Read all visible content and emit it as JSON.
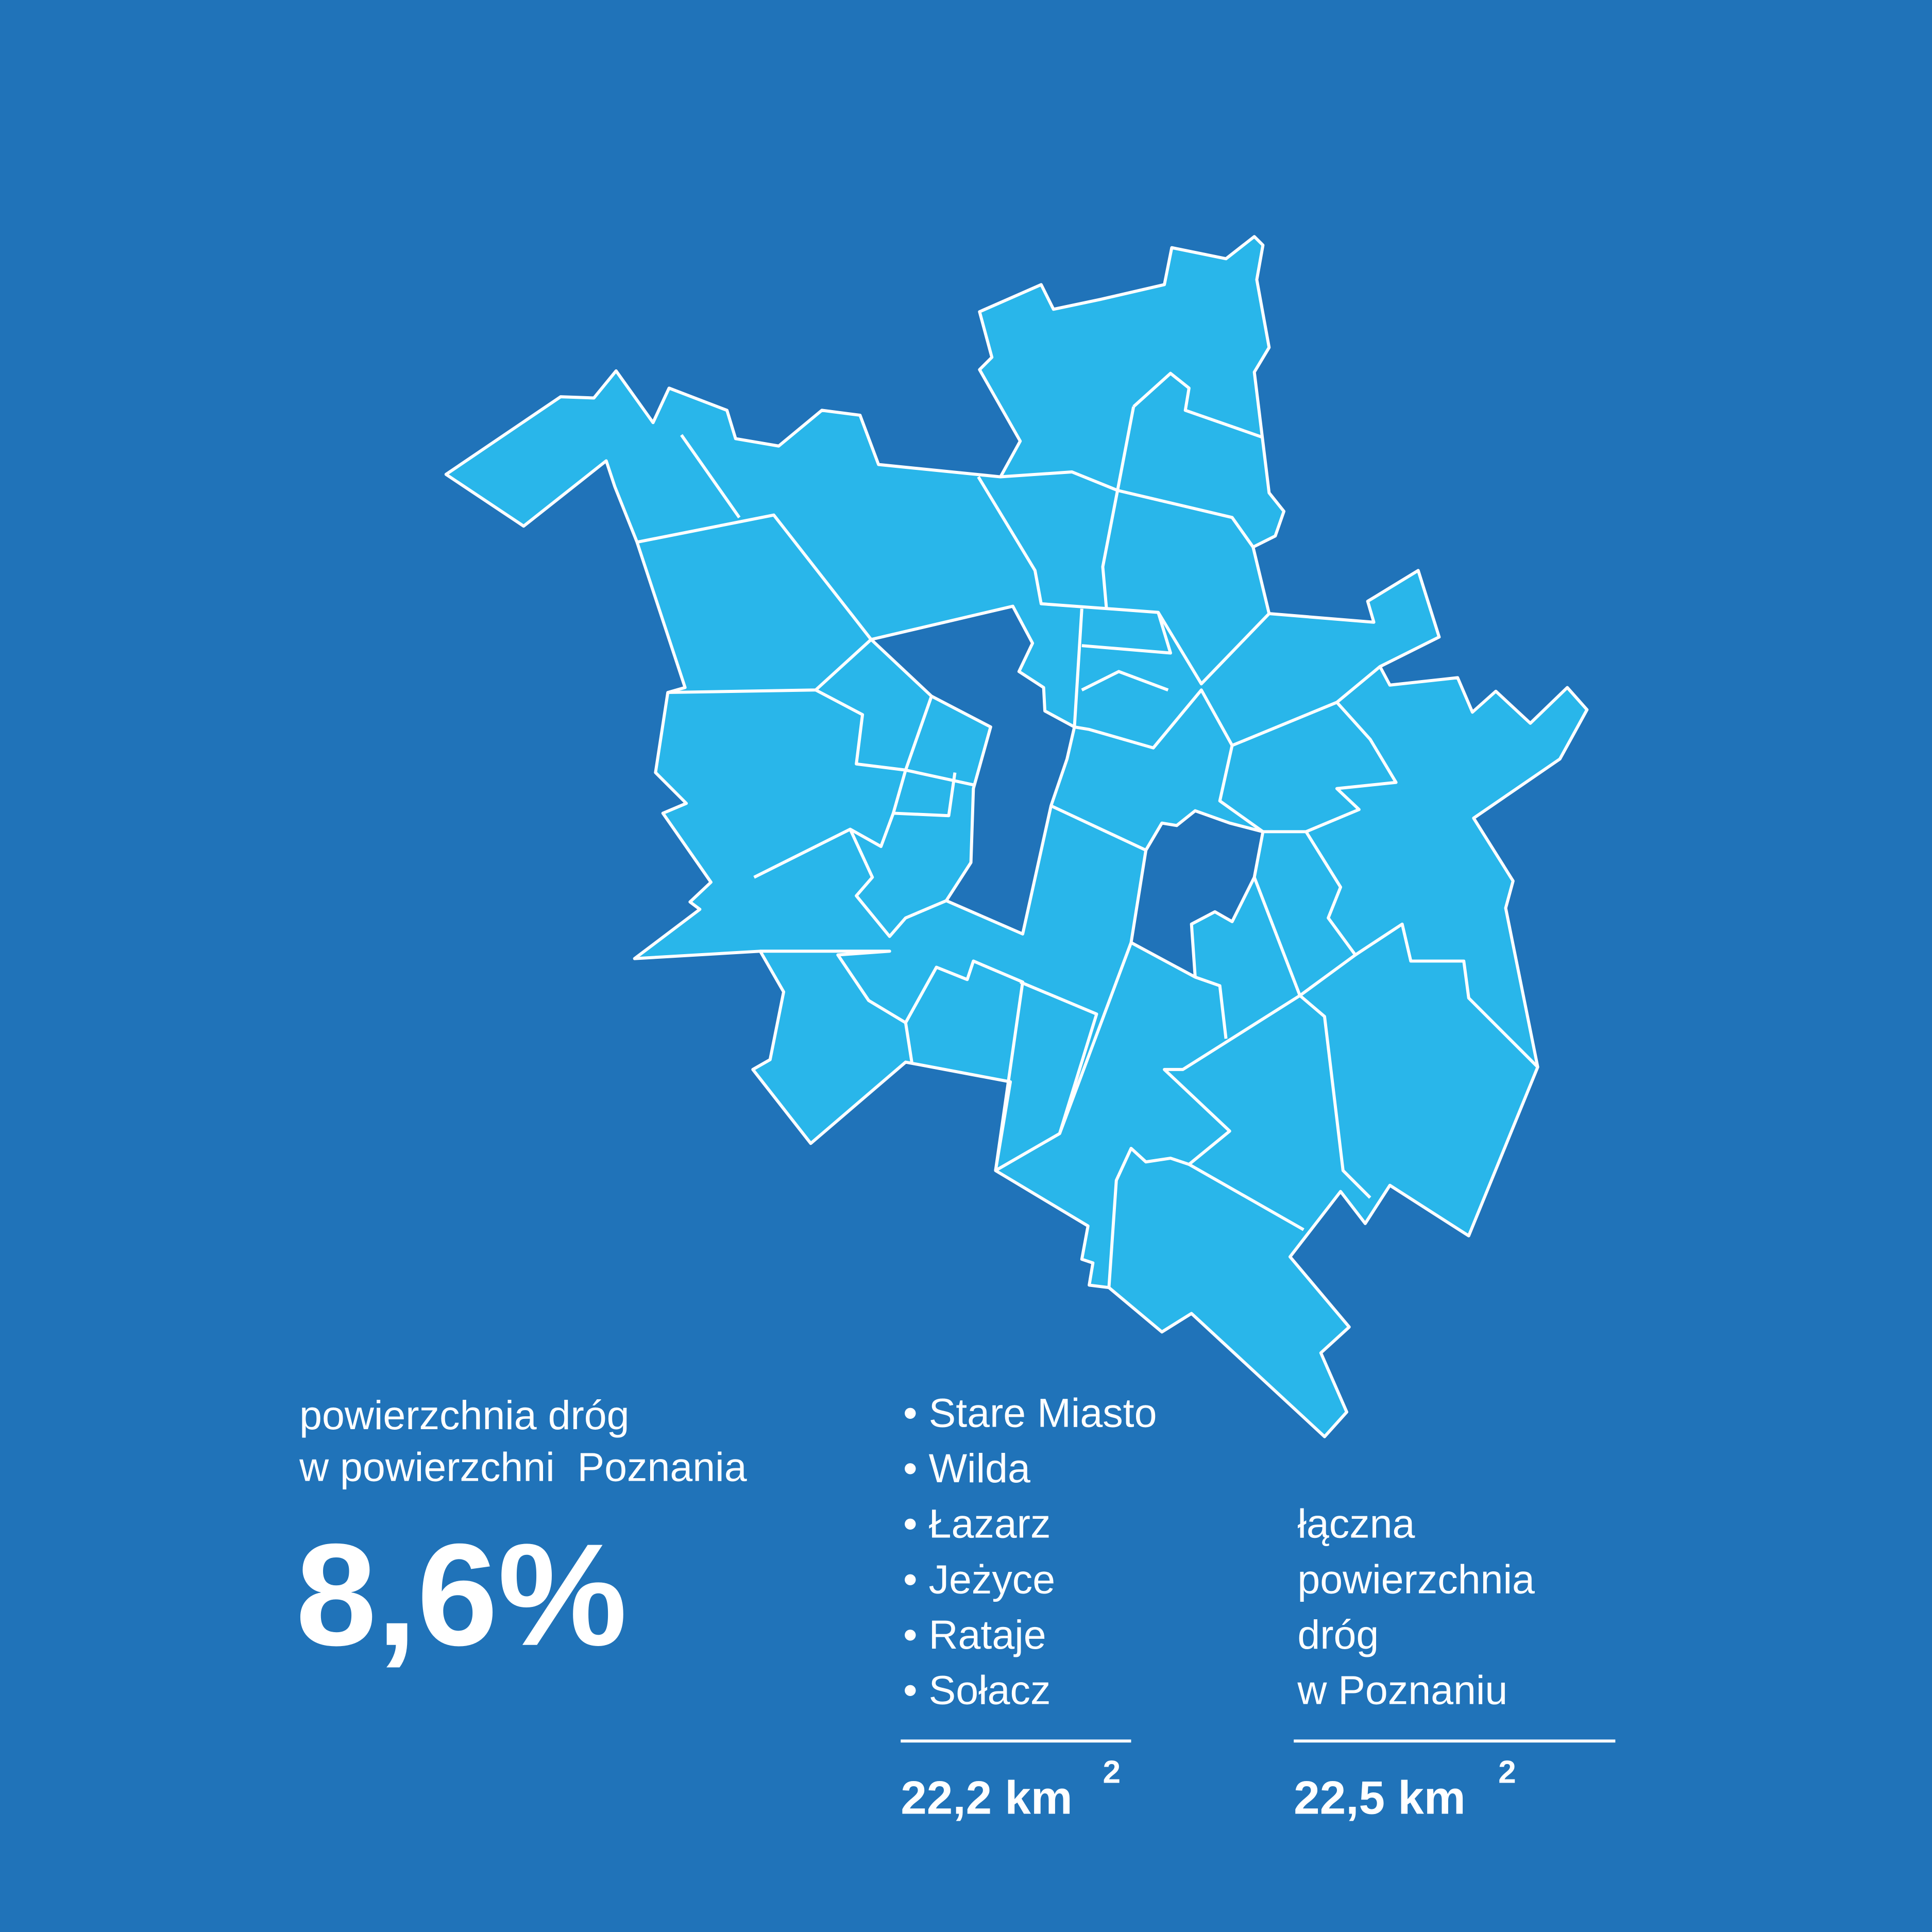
{
  "left": {
    "label_lines": [
      "powierzchnia dróg",
      "w powierzchni  Poznania"
    ],
    "value": "8,6%"
  },
  "districts": {
    "items": [
      "• Stare Miasto",
      "• Wilda",
      "• Łazarz",
      "• Jeżyce",
      "• Rataje",
      "• Sołacz"
    ],
    "total": "22,2 km",
    "total_exponent": "2"
  },
  "city": {
    "label_lines": [
      "łączna",
      "powierzchnia",
      "dróg",
      "w Poznaniu"
    ],
    "total": "22,5 km",
    "total_exponent": "2"
  }
}
